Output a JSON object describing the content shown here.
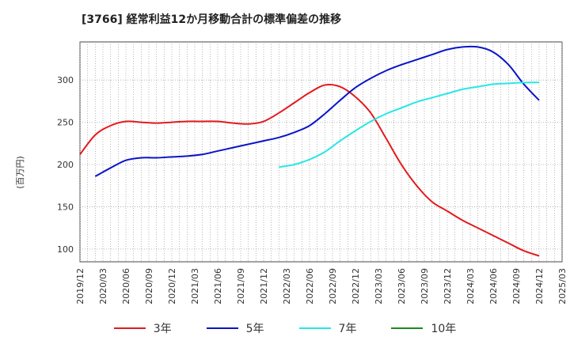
{
  "chart_data": {
    "type": "line",
    "title": "[3766]  経常利益12か月移動合計の標準偏差の推移",
    "ylabel": "(百万円)",
    "ylim": [
      85,
      345
    ],
    "yticks": [
      100,
      150,
      200,
      250,
      300
    ],
    "xticks": [
      "2019/12",
      "2020/03",
      "2020/06",
      "2020/09",
      "2020/12",
      "2021/03",
      "2021/06",
      "2021/09",
      "2021/12",
      "2022/03",
      "2022/06",
      "2022/09",
      "2022/12",
      "2023/03",
      "2023/06",
      "2023/09",
      "2023/12",
      "2024/03",
      "2024/06",
      "2024/09",
      "2024/12",
      "2025/03"
    ],
    "grid": true,
    "legend_position": "bottom",
    "series": [
      {
        "name": "3年",
        "color": "#e31a1c",
        "x": [
          "2019/12",
          "2020/02",
          "2020/04",
          "2020/06",
          "2020/08",
          "2020/10",
          "2020/12",
          "2021/02",
          "2021/04",
          "2021/06",
          "2021/08",
          "2021/10",
          "2021/12",
          "2022/02",
          "2022/04",
          "2022/06",
          "2022/08",
          "2022/10",
          "2022/12",
          "2023/02",
          "2023/04",
          "2023/06",
          "2023/08",
          "2023/10",
          "2023/12",
          "2024/02",
          "2024/04",
          "2024/06",
          "2024/08",
          "2024/10",
          "2024/12"
        ],
        "values": [
          212,
          235,
          246,
          251,
          250,
          249,
          250,
          251,
          251,
          251,
          249,
          248,
          251,
          261,
          273,
          285,
          294,
          292,
          280,
          261,
          231,
          200,
          175,
          156,
          145,
          134,
          125,
          116,
          107,
          98,
          92
        ]
      },
      {
        "name": "5年",
        "color": "#0a14c8",
        "x": [
          "2020/02",
          "2020/04",
          "2020/06",
          "2020/08",
          "2020/10",
          "2020/12",
          "2021/02",
          "2021/04",
          "2021/06",
          "2021/08",
          "2021/10",
          "2021/12",
          "2022/02",
          "2022/04",
          "2022/06",
          "2022/08",
          "2022/10",
          "2022/12",
          "2023/02",
          "2023/04",
          "2023/06",
          "2023/08",
          "2023/10",
          "2023/12",
          "2024/02",
          "2024/04",
          "2024/06",
          "2024/08",
          "2024/10",
          "2024/12"
        ],
        "values": [
          186,
          196,
          205,
          208,
          208,
          209,
          210,
          212,
          216,
          220,
          224,
          228,
          232,
          238,
          246,
          260,
          276,
          291,
          302,
          311,
          318,
          324,
          330,
          336,
          339,
          339,
          333,
          318,
          295,
          276
        ]
      },
      {
        "name": "7年",
        "color": "#28e6e6",
        "x": [
          "2022/02",
          "2022/04",
          "2022/06",
          "2022/08",
          "2022/10",
          "2022/12",
          "2023/02",
          "2023/04",
          "2023/06",
          "2023/08",
          "2023/10",
          "2023/12",
          "2024/02",
          "2024/04",
          "2024/06",
          "2024/08",
          "2024/10",
          "2024/12"
        ],
        "values": [
          197,
          200,
          206,
          215,
          228,
          240,
          251,
          260,
          267,
          274,
          279,
          284,
          289,
          292,
          295,
          296,
          297,
          297
        ]
      },
      {
        "name": "10年",
        "color": "#1a8a1a",
        "x": [],
        "values": []
      }
    ]
  }
}
